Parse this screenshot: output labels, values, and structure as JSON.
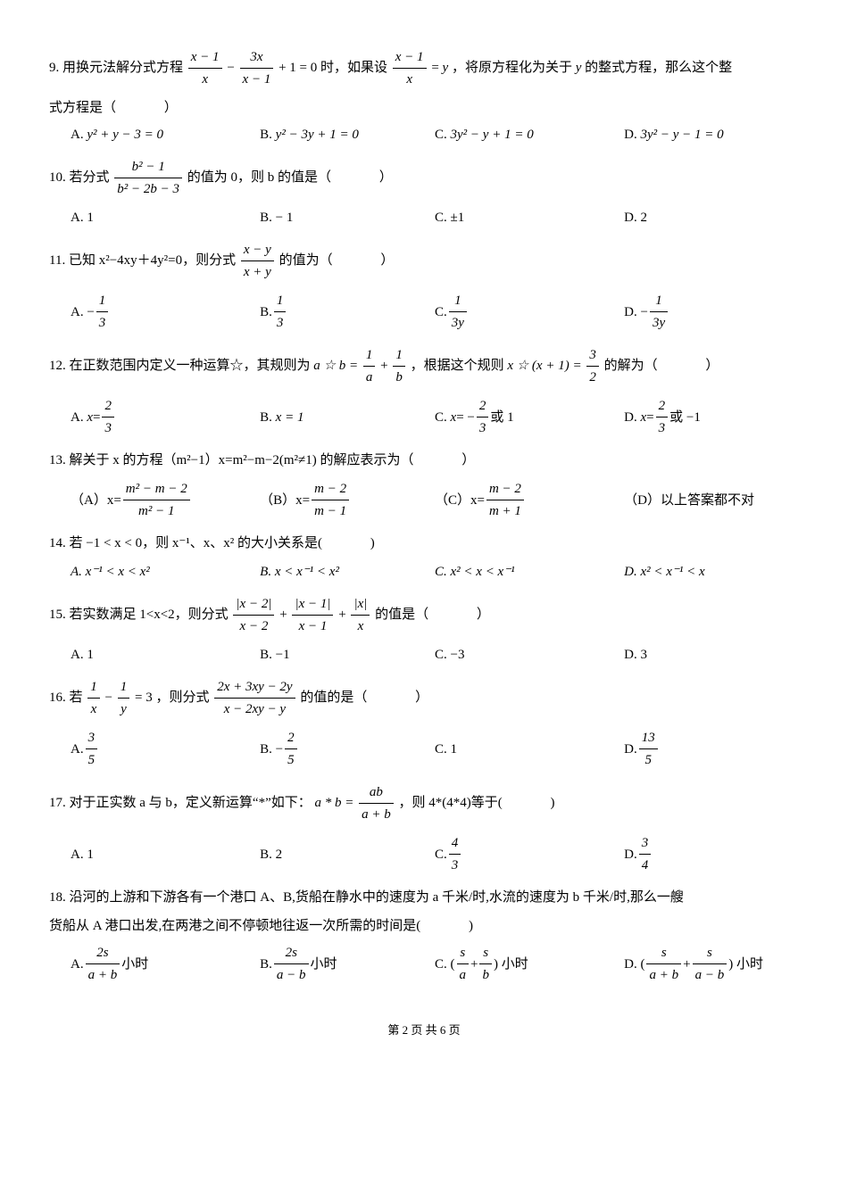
{
  "q9": {
    "num": "9.",
    "t1": "用换元法解分式方程",
    "t2": "时，如果设",
    "t3": "，将原方程化为关于",
    "t4": "的整式方程，那么这个整",
    "t5": "式方程是（",
    "t6": "）",
    "yvar": "y",
    "A": "A.",
    "Aeq": "y² + y − 3 = 0",
    "B": "B.",
    "Beq": "y² − 3y + 1 = 0",
    "C": "C.",
    "Ceq": "3y² − y + 1 = 0",
    "D": "D.",
    "Deq": "3y² − y − 1 = 0"
  },
  "q10": {
    "num": "10.",
    "t1": "若分式",
    "t2": "的值为 0，则 b 的值是（",
    "t3": "）",
    "fnum": "b² − 1",
    "fden": "b² − 2b − 3",
    "A": "A. 1",
    "B": "B. − 1",
    "C": "C. ±1",
    "D": "D. 2"
  },
  "q11": {
    "num": "11.",
    "t1": "已知 x²−4xy＋4y²=0，则分式",
    "t2": "的值为（",
    "t3": "）",
    "fnum": "x − y",
    "fden": "x + y",
    "A": "A. −",
    "B": "B.",
    "C": "C.",
    "D": "D. −"
  },
  "q12": {
    "num": "12.",
    "t1": "在正数范围内定义一种运算☆，其规则为",
    "t2": "，根据这个规则",
    "t3": "的解为（",
    "t4": "）",
    "rule": "a ☆ b =",
    "expr": "x ☆ (x + 1) =",
    "A": "A.",
    "B": "B.",
    "Bx": "x = 1",
    "C": "C.",
    "Cx1": "或 1",
    "D": "D.",
    "Dx1": "或 −1"
  },
  "q13": {
    "num": "13.",
    "t1": "解关于 x 的方程（m²−1）x=m²−m−2(m²≠1) 的解应表示为（",
    "t2": "）",
    "A": "（A）x=",
    "Anum": "m² − m − 2",
    "Aden": "m² − 1",
    "B": "（B）x=",
    "Bnum": "m − 2",
    "Bden": "m − 1",
    "C": "（C）x=",
    "Cnum": "m − 2",
    "Cden": "m + 1",
    "D": "（D）以上答案都不对"
  },
  "q14": {
    "num": "14.",
    "t1": "若 −1 < x < 0，则 x⁻¹、x、x² 的大小关系是(",
    "t2": ")",
    "A": "A. x⁻¹ < x < x²",
    "B": "B. x < x⁻¹ < x²",
    "C": "C. x² < x < x⁻¹",
    "D": "D. x² < x⁻¹ < x"
  },
  "q15": {
    "num": "15.",
    "t1": "若实数满足 1<x<2，则分式",
    "t2": "的值是（",
    "t3": "）",
    "A": "A. 1",
    "B": "B. −1",
    "C": "C. −3",
    "D": "D. 3"
  },
  "q16": {
    "num": "16.",
    "t1": "若",
    "t2": "，则分式",
    "t3": "的值的是（",
    "t4": "）",
    "lhs1n": "1",
    "lhs1d": "x",
    "lhs2n": "1",
    "lhs2d": "y",
    "eq3": "= 3",
    "f2n": "2x + 3xy − 2y",
    "f2d": "x − 2xy − y",
    "A": "A.",
    "B": "B. −",
    "C": "C. 1",
    "D": "D."
  },
  "q17": {
    "num": "17.",
    "t1": "对于正实数 a 与 b，定义新运算“*”如下：",
    "t2": "，则 4*(4*4)等于(",
    "t3": ")",
    "rule": "a * b =",
    "fnum": "ab",
    "fden": "a + b",
    "A": "A. 1",
    "B": "B. 2",
    "C": "C.",
    "D": "D."
  },
  "q18": {
    "num": "18.",
    "t1": "沿河的上游和下游各有一个港口 A、B,货船在静水中的速度为 a 千米/时,水流的速度为 b 千米/时,那么一艘",
    "t2": "货船从 A 港口出发,在两港之间不停顿地往返一次所需的时间是(",
    "t3": ")",
    "A": "A.",
    "Ah": "小时",
    "B": "B.",
    "Bh": "小时",
    "C": "C. (",
    "Ch": ") 小时",
    "D": "D. (",
    "Dh": ") 小时"
  },
  "footer": "第 2 页  共 6 页"
}
